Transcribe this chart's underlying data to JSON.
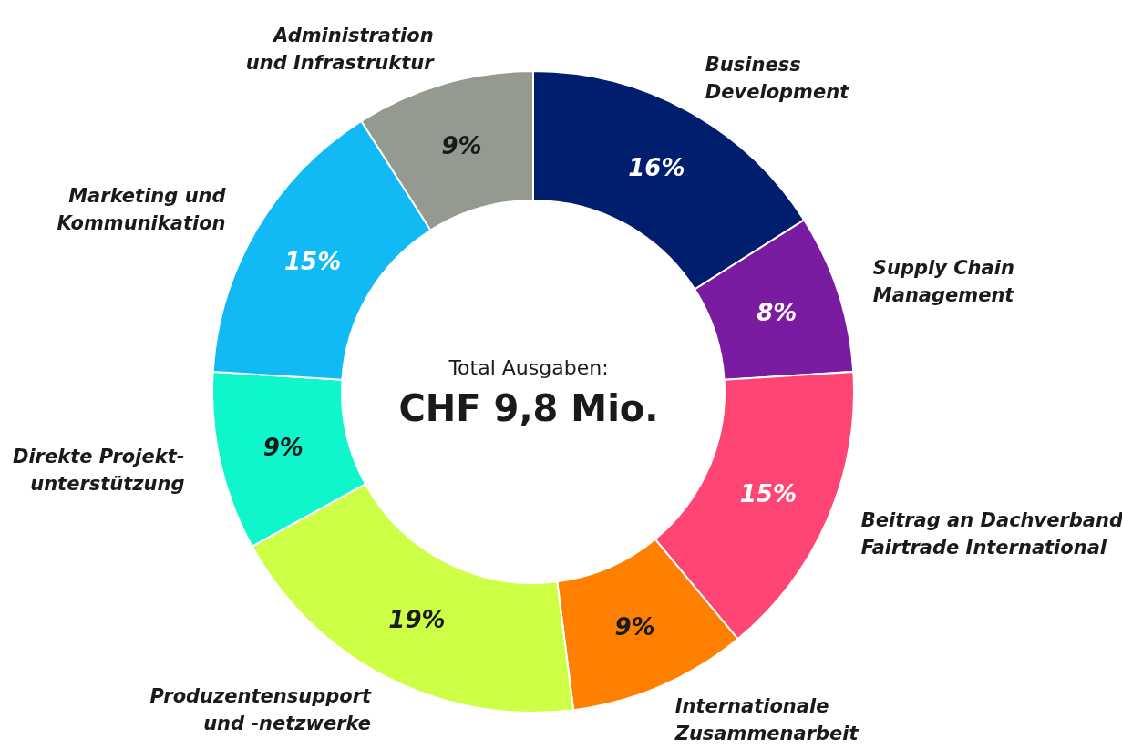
{
  "chart_data": {
    "type": "donut",
    "categories": [
      "Business\nDevelopment",
      "Supply Chain\nManagement",
      "Beitrag an Dachverband\nFairtrade International",
      "Internationale\nZusammenarbeit",
      "Produzentensupport\nund -netzwerke",
      "Direkte Projekt-\nunterstützung",
      "Marketing und\nKommunikation",
      "Administration\nund Infrastruktur"
    ],
    "values": [
      16,
      8,
      15,
      9,
      19,
      9,
      15,
      9
    ],
    "colors": [
      "#001e6e",
      "#7a1ca2",
      "#ff4573",
      "#ff8000",
      "#ccff45",
      "#0ff5cc",
      "#12baf5",
      "#949a8f"
    ],
    "value_labels": [
      "16%",
      "8%",
      "15%",
      "9%",
      "19%",
      "9%",
      "15%",
      "9%"
    ],
    "annotations": [
      "Total Ausgaben:",
      "CHF 9,8 Mio."
    ],
    "legend": false
  }
}
